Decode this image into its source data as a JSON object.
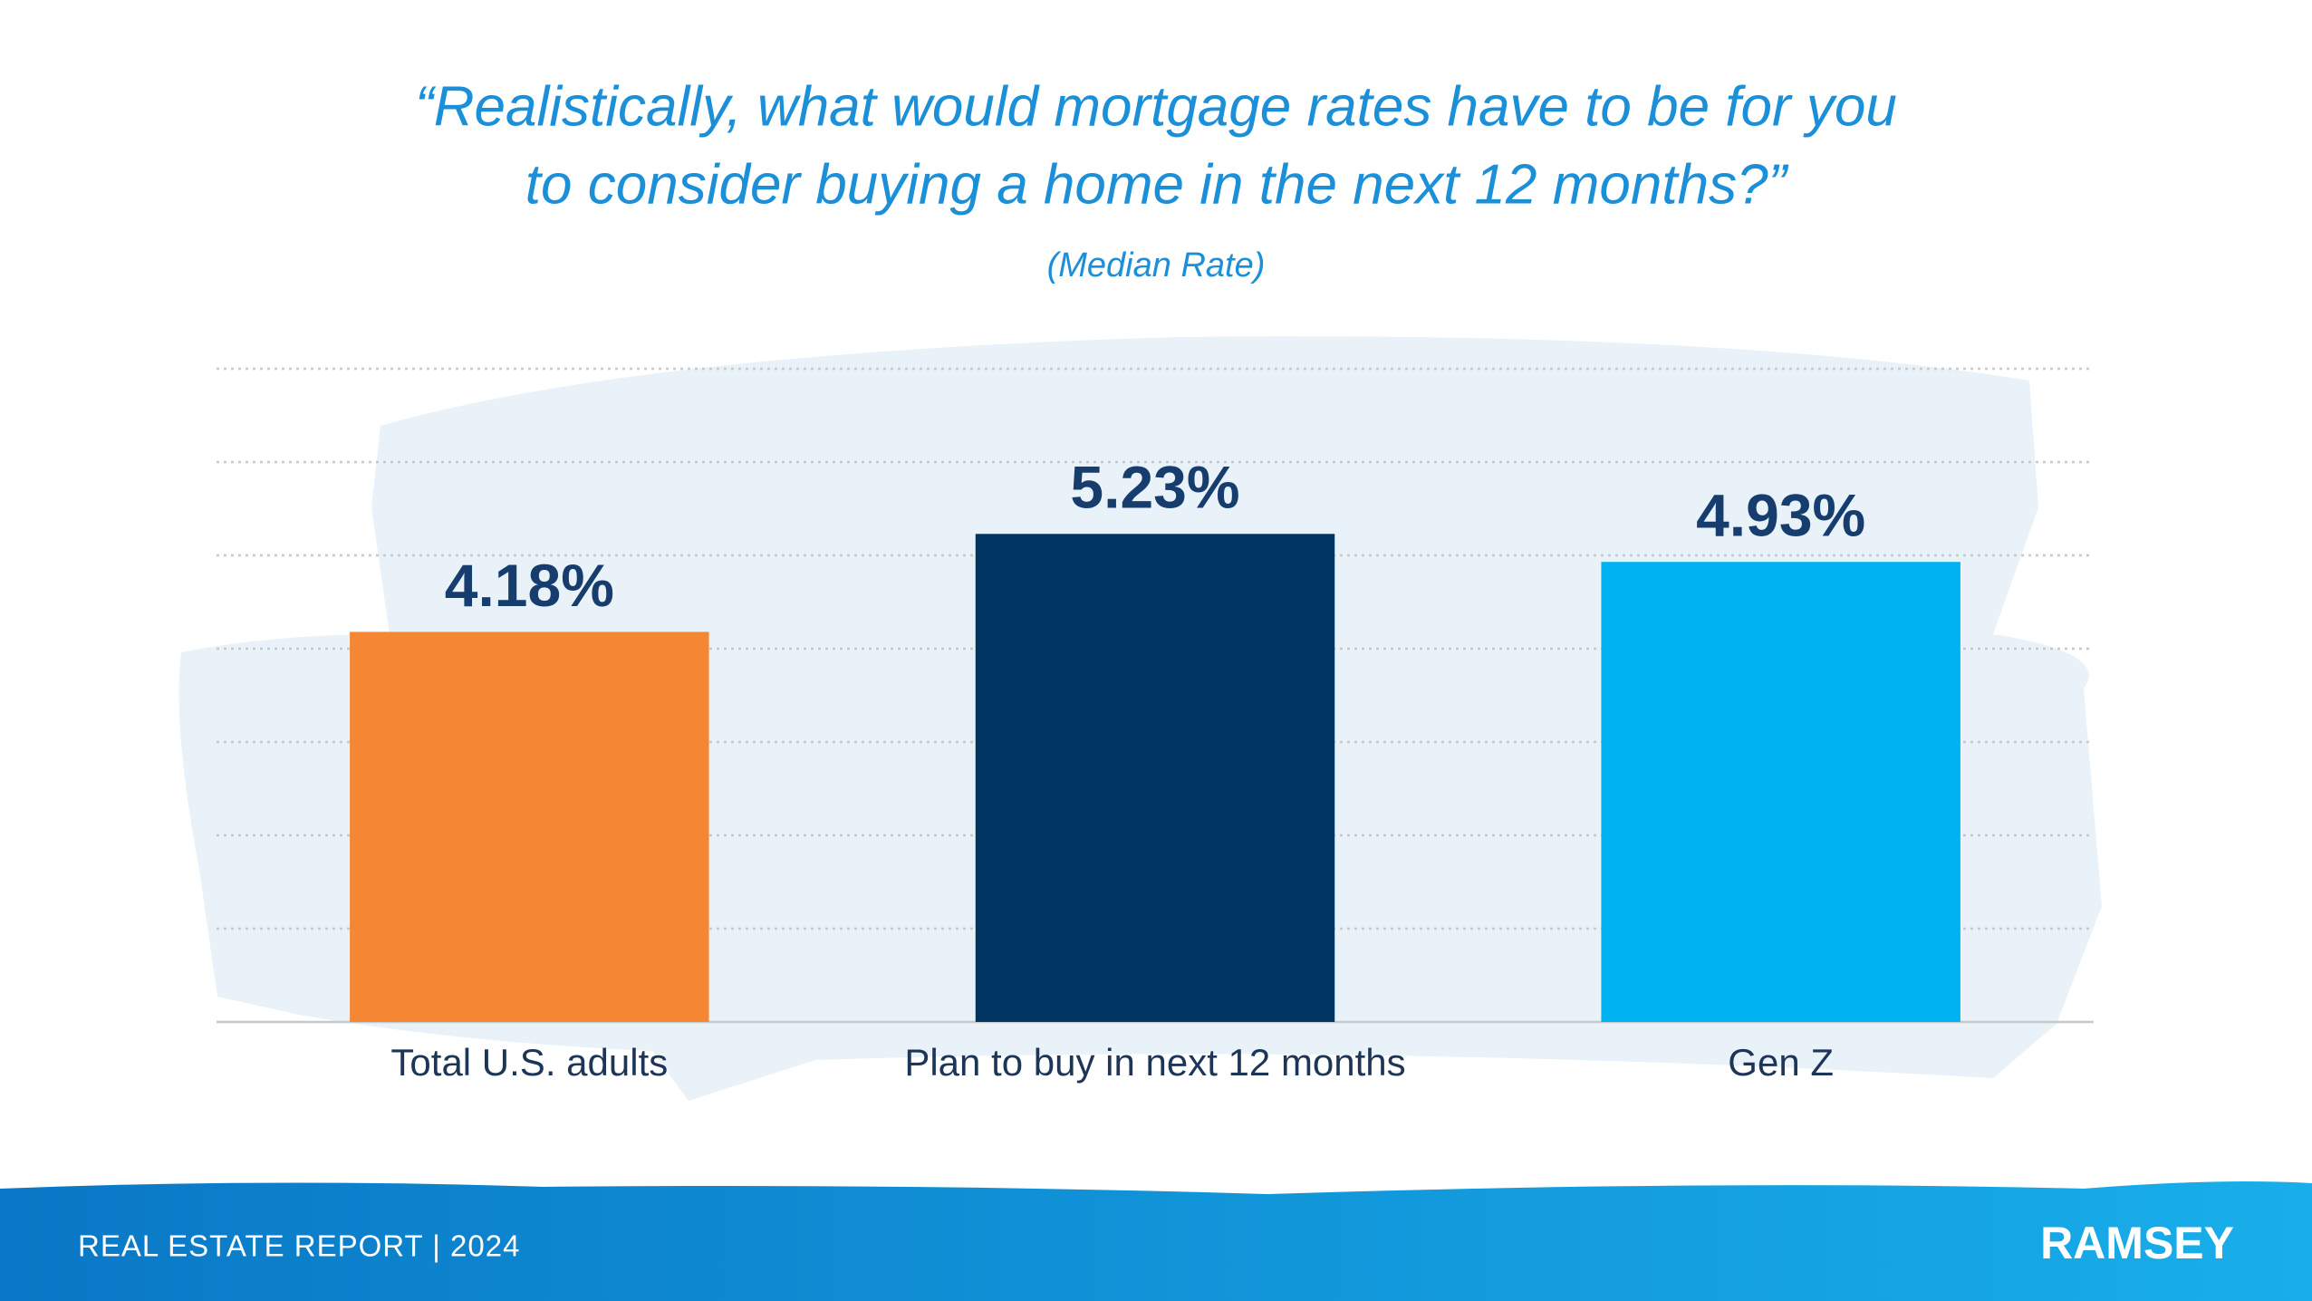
{
  "chart_data": {
    "type": "bar",
    "title": [
      "“Realistically, what would mortgage rates have to be for you",
      "to consider buying a home in the next 12 months?”"
    ],
    "subtitle": "(Median Rate)",
    "categories": [
      "Total U.S. adults",
      "Plan to buy in next 12 months",
      "Gen Z"
    ],
    "values": [
      4.18,
      5.23,
      4.93
    ],
    "value_labels": [
      "4.18%",
      "5.23%",
      "4.93%"
    ],
    "colors": [
      "#f58634",
      "#003461",
      "#00b2f2"
    ],
    "ylim": [
      0,
      7
    ],
    "yticks": [
      0,
      1,
      2,
      3,
      4,
      5,
      6,
      7
    ],
    "grid": true
  },
  "footer": {
    "report": "REAL ESTATE REPORT | 2024",
    "brand": "RAMSEY"
  }
}
